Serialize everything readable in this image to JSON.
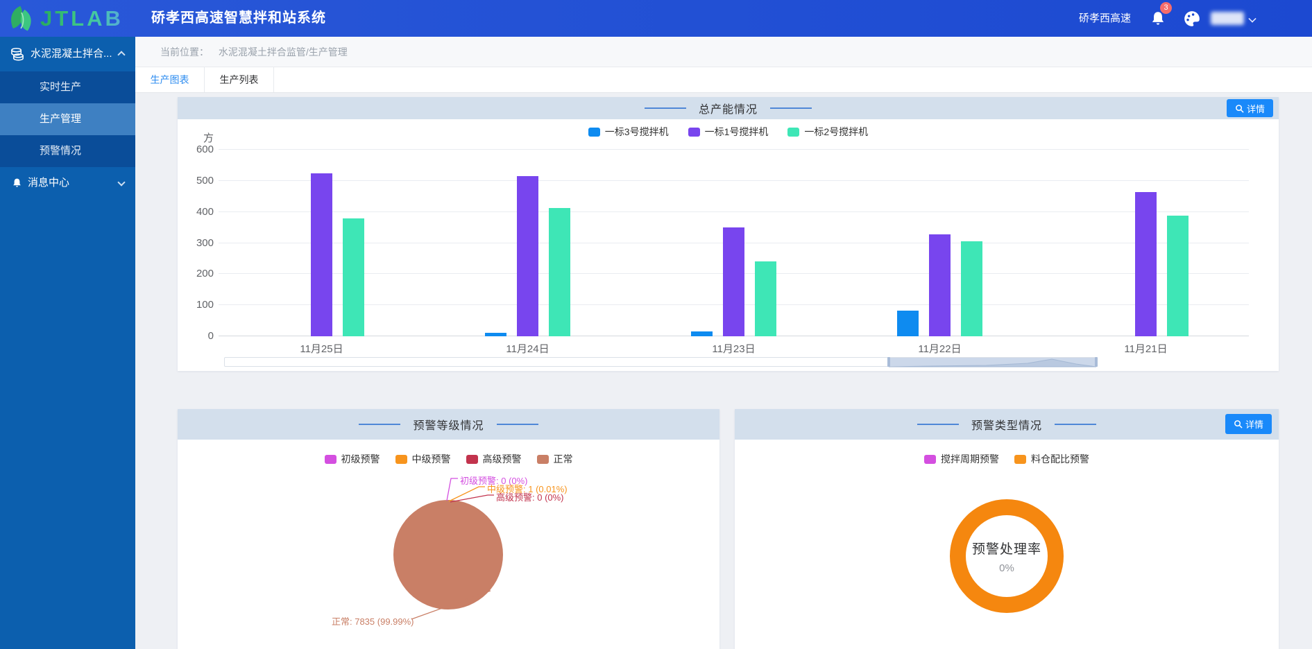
{
  "header": {
    "logo_text": "JTLAB",
    "app_title": "硚孝西高速智慧拌和站系统",
    "project_name": "硚孝西高速",
    "notification_badge": "3"
  },
  "sidebar": {
    "group_label": "水泥混凝土拌合...",
    "submenu": [
      "实时生产",
      "生产管理",
      "预警情况"
    ],
    "active_item": "生产管理",
    "message_center_label": "消息中心"
  },
  "breadcrumb": {
    "prefix": "当前位置：",
    "path": "水泥混凝土拌合监管/生产管理"
  },
  "tabs": {
    "chart_tab": "生产图表",
    "list_tab": "生产列表"
  },
  "cards": {
    "production": {
      "title": "总产能情况",
      "detail_button": "详情"
    },
    "warning_level": {
      "title": "预警等级情况"
    },
    "warning_type": {
      "title": "预警类型情况",
      "detail_button": "详情"
    }
  },
  "colors": {
    "accent_blue": "#1989fa",
    "band_blue": "#d3dfec",
    "header_blue": "#2251d4",
    "sidebar_blue": "#0c5fae"
  },
  "chart_data": [
    {
      "type": "bar",
      "title": "总产能情况",
      "ylabel": "方",
      "ylim": [
        0,
        600
      ],
      "yticks": [
        0,
        100,
        200,
        300,
        400,
        500,
        600
      ],
      "categories": [
        "11月25日",
        "11月24日",
        "11月23日",
        "11月22日",
        "11月21日"
      ],
      "series": [
        {
          "name": "一标3号搅拌机",
          "color": "#0e8bf0",
          "values": [
            0,
            12,
            15,
            82,
            0
          ]
        },
        {
          "name": "一标1号搅拌机",
          "color": "#7845ee",
          "values": [
            525,
            515,
            350,
            328,
            463
          ]
        },
        {
          "name": "一标2号搅拌机",
          "color": "#3ee6b6",
          "values": [
            380,
            412,
            240,
            306,
            388
          ]
        }
      ],
      "legend_position": "top",
      "grid": true,
      "datazoom_window_pct": [
        76,
        100
      ]
    },
    {
      "type": "pie",
      "title": "预警等级情况",
      "legend_position": "top",
      "slices": [
        {
          "name": "初级预警",
          "value": 0,
          "pct": "0%",
          "color": "#d44fe0",
          "label": "初级预警: 0 (0%)"
        },
        {
          "name": "中级预警",
          "value": 1,
          "pct": "0.01%",
          "color": "#f7941d",
          "label": "中级预警: 1 (0.01%)"
        },
        {
          "name": "高级预警",
          "value": 0,
          "pct": "0%",
          "color": "#c2334d",
          "label": "高级预警: 0 (0%)"
        },
        {
          "name": "正常",
          "value": 7835,
          "pct": "99.99%",
          "color": "#c97f66",
          "label": "正常: 7835 (99.99%)"
        }
      ]
    },
    {
      "type": "pie",
      "subtype": "donut",
      "title": "预警类型情况",
      "legend_position": "top",
      "legend_items": [
        {
          "name": "搅拌周期预警",
          "color": "#d44fe0"
        },
        {
          "name": "料仓配比预警",
          "color": "#f7941d"
        }
      ],
      "center_label": "预警处理率",
      "center_value": "0%",
      "ring_color": "#f5870f"
    }
  ]
}
